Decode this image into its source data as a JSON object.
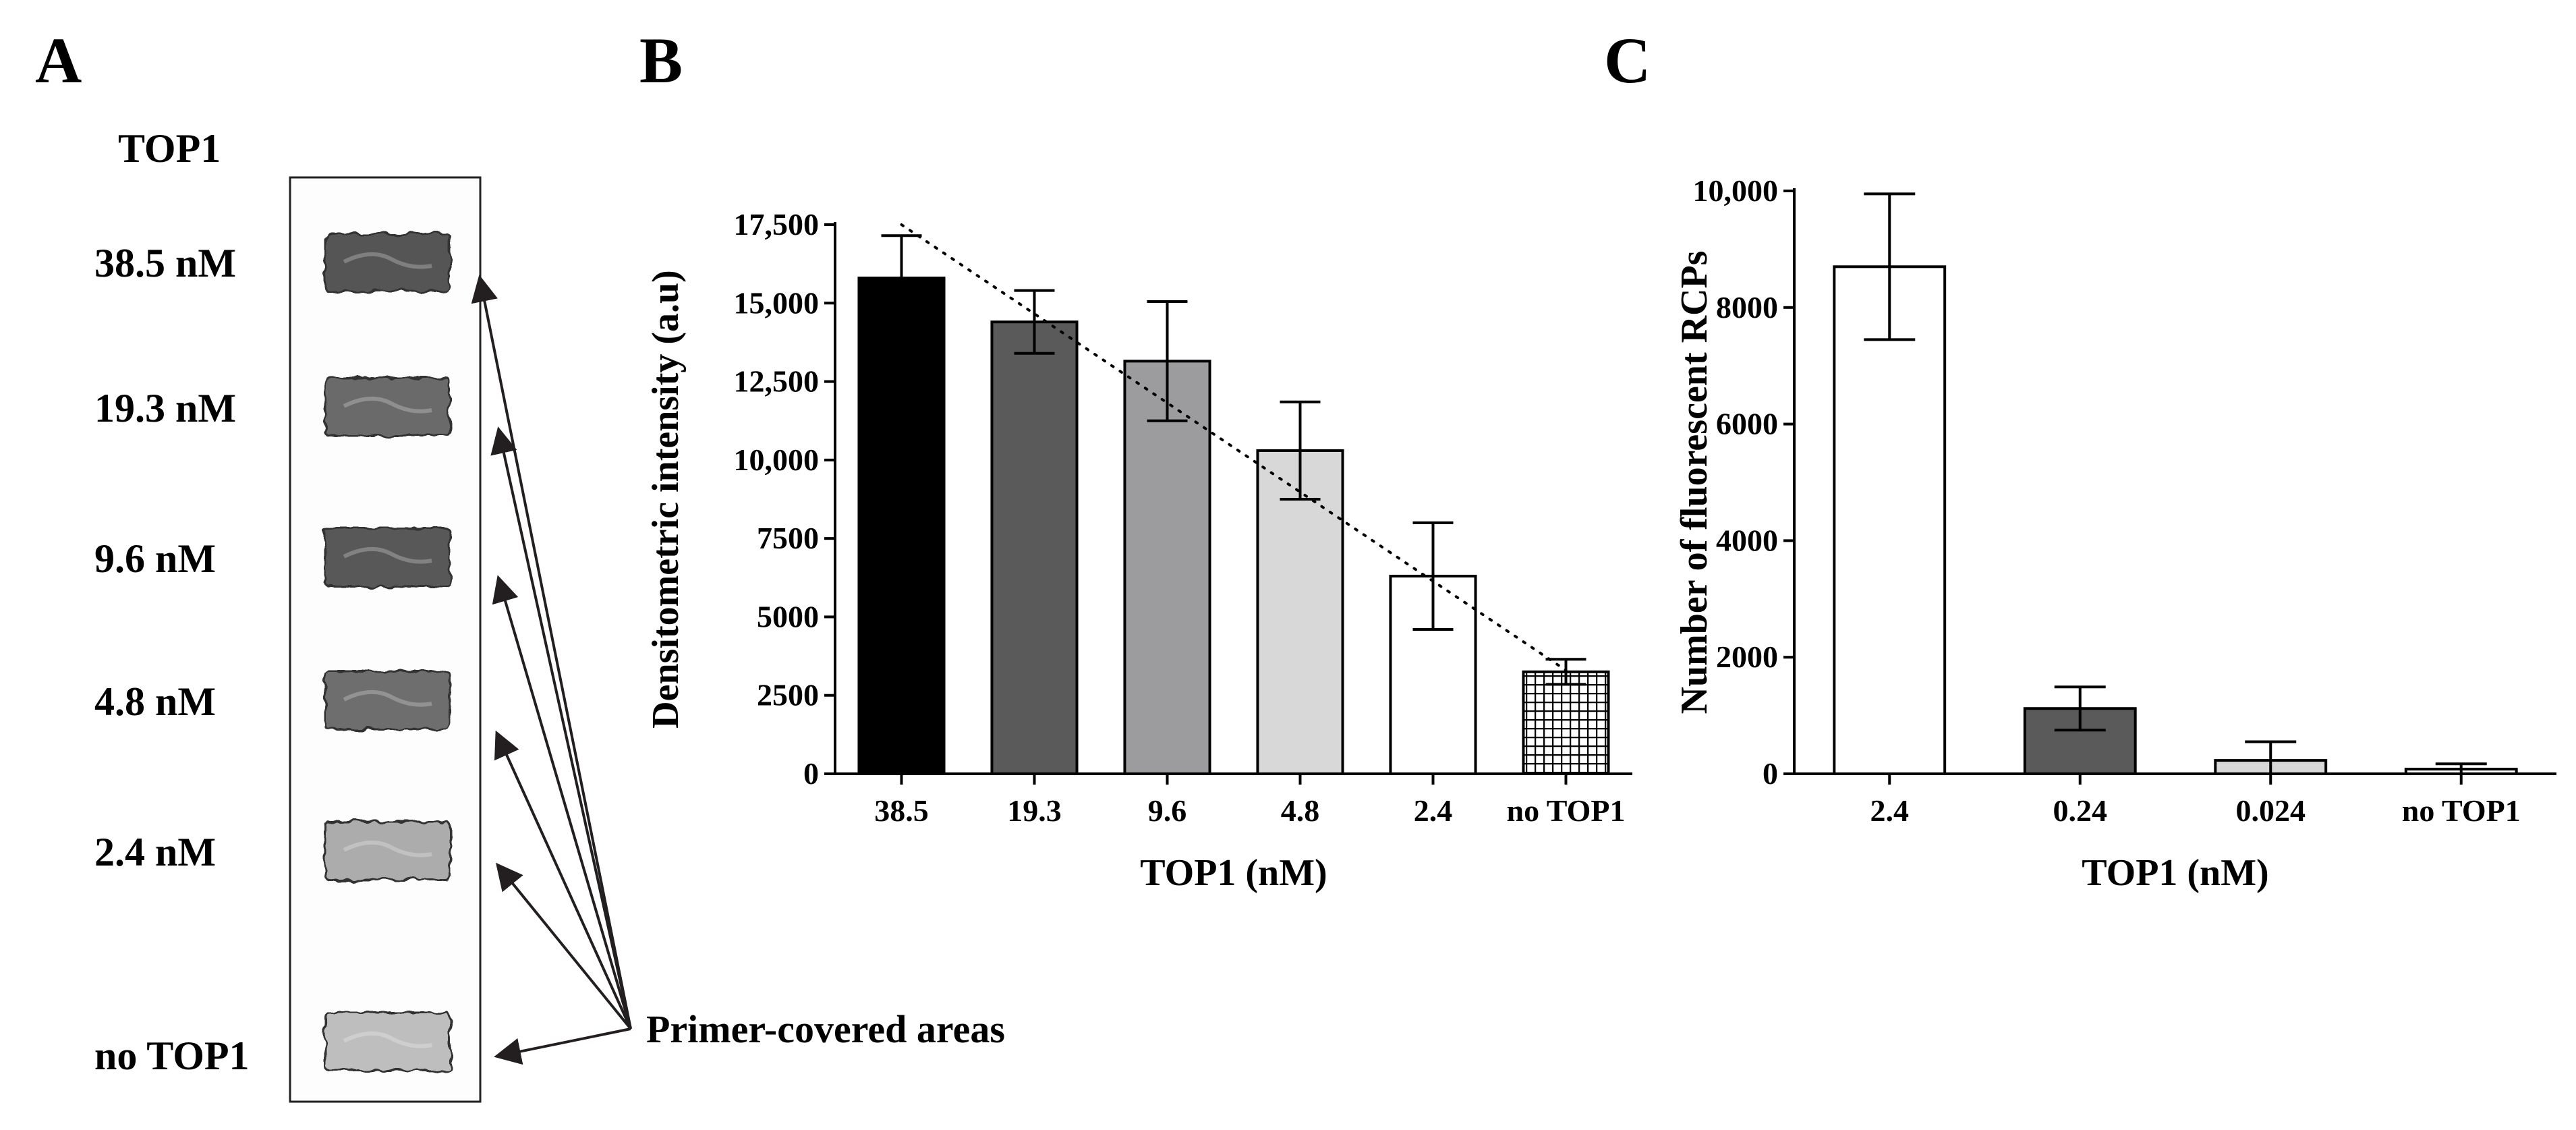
{
  "panel_a": {
    "letter": "A",
    "header": "TOP1",
    "lanes": [
      {
        "label": "38.5 nM",
        "intensity": 0.8
      },
      {
        "label": "19.3 nM",
        "intensity": 0.7
      },
      {
        "label": "9.6 nM",
        "intensity": 0.78
      },
      {
        "label": "4.8 nM",
        "intensity": 0.68
      },
      {
        "label": "2.4 nM",
        "intensity": 0.4
      },
      {
        "label": "no TOP1",
        "intensity": 0.32
      }
    ],
    "annotation": "Primer-covered areas"
  },
  "chart_data": [
    {
      "panel": "B",
      "type": "bar",
      "title": "",
      "xlabel": "TOP1 (nM)",
      "ylabel": "Densitometric intensity (a.u)",
      "categories": [
        "38.5",
        "19.3",
        "9.6",
        "4.8",
        "2.4",
        "no TOP1"
      ],
      "values": [
        15800,
        14400,
        13150,
        10300,
        6300,
        3250
      ],
      "errors": [
        1350,
        1000,
        1900,
        1550,
        1700,
        400
      ],
      "colors": [
        "#000000",
        "#5a5a5a",
        "#9c9c9e",
        "#d8d8d8",
        "#ffffff",
        "pattern"
      ],
      "ylim": [
        0,
        17500
      ],
      "yticks": [
        0,
        2500,
        5000,
        7500,
        10000,
        12500,
        15000,
        17500
      ],
      "ytick_labels": [
        "0",
        "2500",
        "5000",
        "7500",
        "10,000",
        "12,500",
        "15,000",
        "17,500"
      ],
      "trendline": {
        "style": "dotted",
        "start": [
          0,
          17500
        ],
        "end": [
          5,
          3300
        ]
      }
    },
    {
      "panel": "C",
      "type": "bar",
      "title": "",
      "xlabel": "TOP1 (nM)",
      "ylabel": "Number of fluorescent RCPs",
      "categories": [
        "2.4",
        "0.24",
        "0.024",
        "no TOP1"
      ],
      "values": [
        8700,
        1120,
        230,
        80
      ],
      "errors": [
        1250,
        370,
        320,
        90
      ],
      "colors": [
        "#ffffff",
        "#5a5a5a",
        "#d8d8d8",
        "#ffffff"
      ],
      "ylim": [
        0,
        10000
      ],
      "yticks": [
        0,
        2000,
        4000,
        6000,
        8000,
        10000
      ],
      "ytick_labels": [
        "0",
        "2000",
        "4000",
        "6000",
        "8000",
        "10,000"
      ]
    }
  ]
}
